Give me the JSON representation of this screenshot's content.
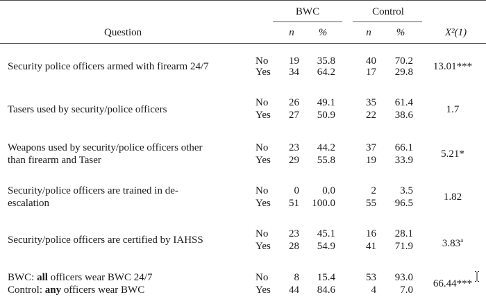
{
  "header": {
    "group_bwc": "BWC",
    "group_control": "Control",
    "question": "Question",
    "n": "n",
    "pct": "%",
    "chi": "X²(1)"
  },
  "rows": [
    {
      "question": [
        "Security police officers armed with firearm 24/7"
      ],
      "responses": [
        "No",
        "Yes"
      ],
      "bwc_n": [
        "19",
        "34"
      ],
      "bwc_pct": [
        "35.8",
        "64.2"
      ],
      "ctl_n": [
        "40",
        "17"
      ],
      "ctl_pct": [
        "70.2",
        "29.8"
      ],
      "chi": "13.01***"
    },
    {
      "question": [
        "Tasers used by security/police  officers"
      ],
      "responses": [
        "No",
        "Yes"
      ],
      "bwc_n": [
        "26",
        "27"
      ],
      "bwc_pct": [
        "49.1",
        "50.9"
      ],
      "ctl_n": [
        "35",
        "22"
      ],
      "ctl_pct": [
        "61.4",
        "38.6"
      ],
      "chi": "1.7"
    },
    {
      "question": [
        "Weapons used by security/police  officers other",
        "than firearm and Taser"
      ],
      "responses": [
        "No",
        "Yes"
      ],
      "bwc_n": [
        "23",
        "29"
      ],
      "bwc_pct": [
        "44.2",
        "55.8"
      ],
      "ctl_n": [
        "37",
        "19"
      ],
      "ctl_pct": [
        "66.1",
        "33.9"
      ],
      "chi": "5.21*"
    },
    {
      "question": [
        "Security/police  officers are trained in de-",
        "escalation"
      ],
      "responses": [
        "No",
        "Yes"
      ],
      "bwc_n": [
        "0",
        "51"
      ],
      "bwc_pct": [
        "0.0",
        "100.0"
      ],
      "ctl_n": [
        "2",
        "55"
      ],
      "ctl_pct": [
        "3.5",
        "96.5"
      ],
      "chi": "1.82"
    },
    {
      "question": [
        "Security/police  officers are certified by IAHSS"
      ],
      "responses": [
        "No",
        "Yes"
      ],
      "bwc_n": [
        "23",
        "28"
      ],
      "bwc_pct": [
        "45.1",
        "54.9"
      ],
      "ctl_n": [
        "16",
        "41"
      ],
      "ctl_pct": [
        "28.1",
        "71.9"
      ],
      "chi": "3.83",
      "chi_sup": "a"
    },
    {
      "question_rich": [
        {
          "pre": "BWC: ",
          "bold": "all",
          "post": " officers wear BWC 24/7"
        },
        {
          "pre": "Control:  ",
          "bold": "any",
          "post": " officers wear BWC"
        }
      ],
      "responses": [
        "No",
        "Yes"
      ],
      "bwc_n": [
        "8",
        "44"
      ],
      "bwc_pct": [
        "15.4",
        "84.6"
      ],
      "ctl_n": [
        "53",
        "4"
      ],
      "ctl_pct": [
        "93.0",
        "7.0"
      ],
      "chi": "66.44***"
    }
  ]
}
